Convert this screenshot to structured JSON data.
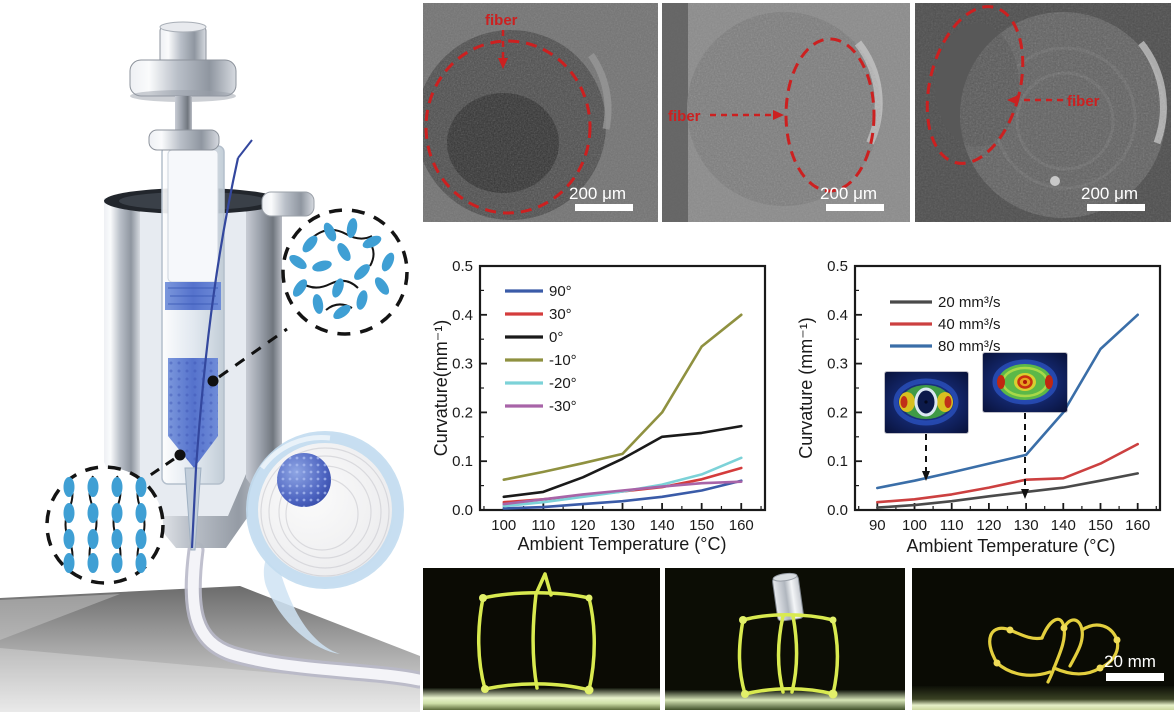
{
  "figure": {
    "description_labels": {
      "sem_annotation": "fiber",
      "sem_scale": "200 μm",
      "photo_scale": "20 mm"
    },
    "palette": {
      "mesogen_blue": "#3f9fd4",
      "annotation_red": "#cc2020",
      "structure_yellow": "#d9ea4f",
      "material_blue": "#5b7fd4"
    }
  },
  "sem_panels": [
    {
      "annotation": "fiber",
      "scale_bar": "200 μm"
    },
    {
      "annotation": "fiber",
      "scale_bar": "200 μm"
    },
    {
      "annotation": "fiber",
      "scale_bar": "200 μm"
    }
  ],
  "photo_panels": [
    {
      "scale_bar": ""
    },
    {
      "scale_bar": ""
    },
    {
      "scale_bar": "20 mm"
    }
  ],
  "chart_data": [
    {
      "type": "line",
      "title": "",
      "xlabel": "Ambient Temperature (°C)",
      "ylabel": "Curvature(mm⁻¹)",
      "xlim": [
        94,
        166
      ],
      "ylim": [
        0,
        0.5
      ],
      "xticks": [
        100,
        110,
        120,
        130,
        140,
        150,
        160
      ],
      "yticks": [
        0,
        0.1,
        0.2,
        0.3,
        0.4,
        0.5
      ],
      "ytick_labels": [
        "0.0",
        "0.1",
        "0.2",
        "0.3",
        "0.4",
        "0.5"
      ],
      "grid": false,
      "legend_position": "top-left",
      "x": [
        100,
        110,
        120,
        130,
        140,
        150,
        160
      ],
      "series": [
        {
          "name": "90°",
          "color": "#3a5ba8",
          "values": [
            0.003,
            0.006,
            0.012,
            0.018,
            0.027,
            0.04,
            0.06
          ]
        },
        {
          "name": "30°",
          "color": "#d43c3c",
          "values": [
            0.016,
            0.022,
            0.03,
            0.038,
            0.047,
            0.063,
            0.086
          ]
        },
        {
          "name": "0°",
          "color": "#1a1a1a",
          "values": [
            0.027,
            0.037,
            0.067,
            0.105,
            0.15,
            0.158,
            0.172
          ]
        },
        {
          "name": "-10°",
          "color": "#8f9140",
          "values": [
            0.062,
            0.078,
            0.096,
            0.115,
            0.2,
            0.335,
            0.4
          ]
        },
        {
          "name": "-20°",
          "color": "#7cd2d8",
          "values": [
            0.008,
            0.016,
            0.027,
            0.038,
            0.052,
            0.073,
            0.107
          ]
        },
        {
          "name": "-30°",
          "color": "#a864a8",
          "values": [
            0.012,
            0.022,
            0.032,
            0.04,
            0.048,
            0.055,
            0.058
          ]
        }
      ]
    },
    {
      "type": "line",
      "title": "",
      "xlabel": "Ambient Temperature (°C)",
      "ylabel": "Curvature (mm⁻¹)",
      "xlim": [
        84,
        166
      ],
      "ylim": [
        0,
        0.5
      ],
      "xticks": [
        90,
        100,
        110,
        120,
        130,
        140,
        150,
        160
      ],
      "yticks": [
        0,
        0.1,
        0.2,
        0.3,
        0.4,
        0.5
      ],
      "ytick_labels": [
        "0.0",
        "0.1",
        "0.2",
        "0.3",
        "0.4",
        "0.5"
      ],
      "grid": false,
      "legend_position": "top-left",
      "x": [
        90,
        100,
        110,
        120,
        130,
        140,
        150,
        160
      ],
      "series": [
        {
          "name": "20 mm³/s",
          "color": "#4a4a4a",
          "values": [
            0.005,
            0.01,
            0.018,
            0.028,
            0.037,
            0.046,
            0.06,
            0.075
          ]
        },
        {
          "name": "40 mm³/s",
          "color": "#cc4040",
          "values": [
            0.016,
            0.022,
            0.032,
            0.046,
            0.062,
            0.065,
            0.095,
            0.135
          ]
        },
        {
          "name": "80 mm³/s",
          "color": "#3a6ea8",
          "values": [
            0.045,
            0.06,
            0.077,
            0.095,
            0.113,
            0.2,
            0.33,
            0.4
          ]
        }
      ]
    }
  ]
}
